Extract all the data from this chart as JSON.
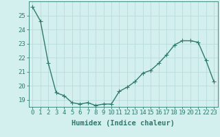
{
  "x": [
    0,
    1,
    2,
    3,
    4,
    5,
    6,
    7,
    8,
    9,
    10,
    11,
    12,
    13,
    14,
    15,
    16,
    17,
    18,
    19,
    20,
    21,
    22,
    23
  ],
  "y": [
    25.6,
    24.6,
    21.6,
    19.5,
    19.3,
    18.8,
    18.7,
    18.8,
    18.6,
    18.7,
    18.7,
    19.6,
    19.9,
    20.3,
    20.9,
    21.1,
    21.6,
    22.2,
    22.9,
    23.2,
    23.2,
    23.1,
    21.8,
    20.3
  ],
  "line_color": "#2d7a6a",
  "marker_color": "#2d7a6a",
  "bg_color": "#d4f0ee",
  "grid_color": "#b8dbd9",
  "xlabel": "Humidex (Indice chaleur)",
  "ylim": [
    18.5,
    26.0
  ],
  "xlim": [
    -0.5,
    23.5
  ],
  "yticks": [
    19,
    20,
    21,
    22,
    23,
    24,
    25
  ],
  "xticks": [
    0,
    1,
    2,
    3,
    4,
    5,
    6,
    7,
    8,
    9,
    10,
    11,
    12,
    13,
    14,
    15,
    16,
    17,
    18,
    19,
    20,
    21,
    22,
    23
  ],
  "text_color": "#2d7a6a",
  "tick_fontsize": 6.5,
  "xlabel_fontsize": 7.5,
  "linewidth": 1.0,
  "markersize": 2.5
}
